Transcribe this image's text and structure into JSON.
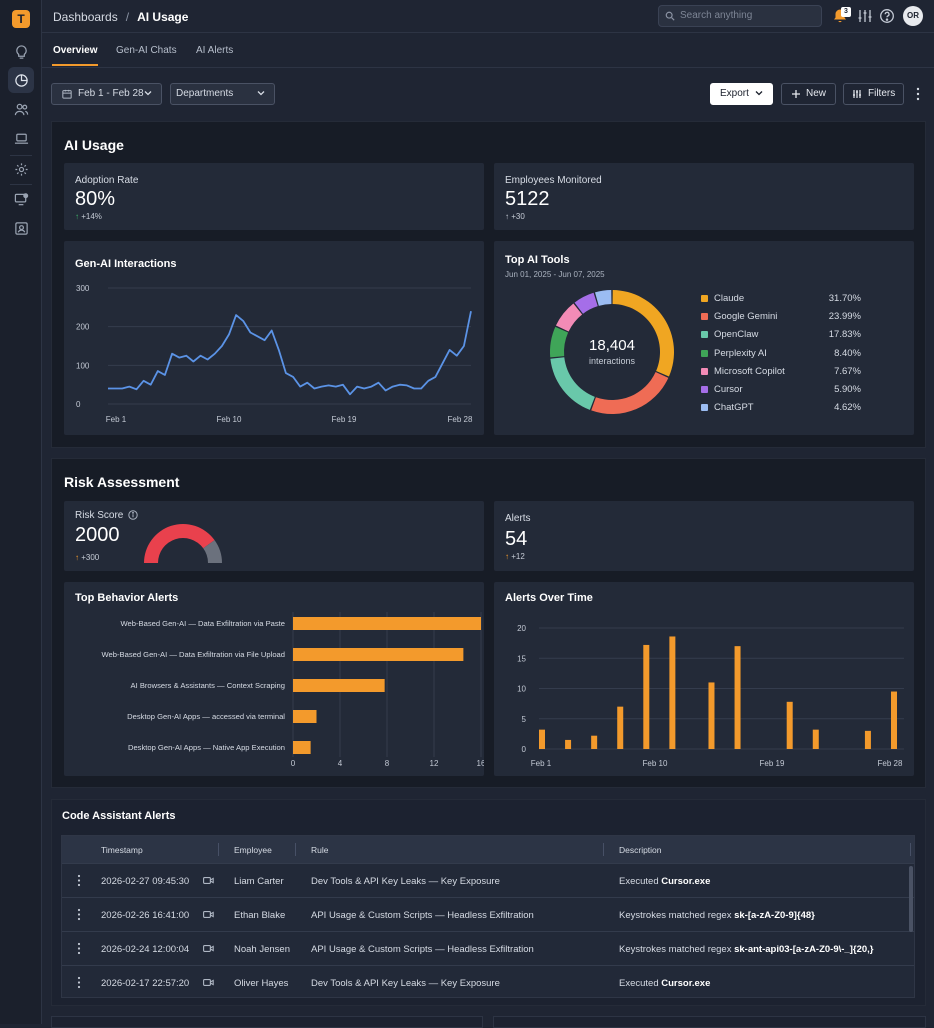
{
  "app": {
    "logo": "T"
  },
  "sidebar": {
    "icons": [
      "lightbulb-icon",
      "pie-chart-icon",
      "users-icon",
      "laptop-icon",
      "gear-icon",
      "monitor-alert-icon",
      "contact-card-icon"
    ]
  },
  "breadcrumb": {
    "parent": "Dashboards",
    "separator": "/",
    "current": "AI Usage"
  },
  "search": {
    "placeholder": "Search anything"
  },
  "header": {
    "notifications": "3",
    "avatar": "OR"
  },
  "tabs": [
    {
      "label": "Overview",
      "active": true
    },
    {
      "label": "Gen-AI Chats"
    },
    {
      "label": "AI Alerts"
    }
  ],
  "filters": {
    "date": "Feb 1 - Feb 28",
    "department": "Departments",
    "export": "Export",
    "new": "New",
    "filters": "Filters"
  },
  "ai_usage": {
    "title": "AI Usage",
    "adoption": {
      "label": "Adoption Rate",
      "value": "80%",
      "delta": "+14%"
    },
    "employees": {
      "label": "Employees Monitored",
      "value": "5122",
      "delta": "+30"
    }
  },
  "interactions": {
    "title": "Gen-AI Interactions"
  },
  "tools": {
    "title": "Top AI Tools",
    "subtitle": "Jun 01, 2025 - Jun 07, 2025",
    "total": "18,404",
    "total_label": "interactions"
  },
  "risk": {
    "title": "Risk Assessment",
    "score": {
      "label": "Risk Score",
      "value": "2000",
      "delta": "+300"
    },
    "alerts": {
      "label": "Alerts",
      "value": "54",
      "delta": "+12"
    },
    "behavior_title": "Top Behavior Alerts",
    "over_time_title": "Alerts Over Time"
  },
  "code_alerts": {
    "title": "Code Assistant Alerts",
    "columns": [
      "Timestamp",
      "Employee",
      "Rule",
      "Description"
    ],
    "rows": [
      {
        "timestamp": "2026-02-27 09:45:30",
        "employee": "Liam Carter",
        "rule": "Dev Tools & API Key Leaks — Key Exposure",
        "desc_prefix": "Executed ",
        "desc_bold": "Cursor.exe"
      },
      {
        "timestamp": "2026-02-26 16:41:00",
        "employee": "Ethan Blake",
        "rule": "API Usage & Custom Scripts — Headless Exfiltration",
        "desc_prefix": "Keystrokes matched regex ",
        "desc_bold": "sk-[a-zA-Z0-9]{48}"
      },
      {
        "timestamp": "2026-02-24 12:00:04",
        "employee": "Noah Jensen",
        "rule": "API Usage & Custom Scripts — Headless Exfiltration",
        "desc_prefix": "Keystrokes matched regex ",
        "desc_bold": "sk-ant-api03-[a-zA-Z0-9\\-_]{20,}"
      },
      {
        "timestamp": "2026-02-17 22:57:20",
        "employee": "Oliver Hayes",
        "rule": "Dev Tools & API Key Leaks — Key Exposure",
        "desc_prefix": "Executed ",
        "desc_bold": "Cursor.exe"
      }
    ]
  },
  "chart_data": [
    {
      "type": "line",
      "title": "Gen-AI Interactions",
      "x_ticks": [
        "Feb 1",
        "Feb 10",
        "Feb 19",
        "Feb 28"
      ],
      "ylim": [
        0,
        300
      ],
      "y_ticks": [
        0,
        100,
        200,
        300
      ],
      "color": "#5b93e6",
      "grid": true,
      "values": [
        40,
        40,
        40,
        45,
        38,
        60,
        50,
        85,
        75,
        130,
        120,
        125,
        110,
        125,
        115,
        130,
        150,
        180,
        230,
        215,
        185,
        175,
        165,
        190,
        140,
        80,
        70,
        45,
        55,
        40,
        45,
        48,
        45,
        50,
        25,
        45,
        40,
        45,
        55,
        35,
        45,
        50,
        48,
        40,
        40,
        60,
        70,
        105,
        140,
        125,
        150,
        240
      ]
    },
    {
      "type": "pie",
      "title": "Top AI Tools",
      "donut": true,
      "slices": [
        {
          "name": "Claude",
          "value": 31.7,
          "label": "31.70%",
          "color": "#f0a622"
        },
        {
          "name": "Google Gemini",
          "value": 23.99,
          "label": "23.99%",
          "color": "#ef6c55"
        },
        {
          "name": "OpenClaw",
          "value": 17.83,
          "label": "17.83%",
          "color": "#69c8aa"
        },
        {
          "name": "Perplexity AI",
          "value": 8.4,
          "label": "8.40%",
          "color": "#3fa558"
        },
        {
          "name": "Microsoft Copilot",
          "value": 7.67,
          "label": "7.67%",
          "color": "#f28bb6"
        },
        {
          "name": "Cursor",
          "value": 5.9,
          "label": "5.90%",
          "color": "#a56ee8"
        },
        {
          "name": "ChatGPT",
          "value": 4.62,
          "label": "4.62%",
          "color": "#9bbcf2"
        }
      ]
    },
    {
      "type": "gauge",
      "title": "Risk Score",
      "fraction": 0.8,
      "colors": {
        "fill": "#e9414d",
        "rest": "#6b717d"
      }
    },
    {
      "type": "bar",
      "orientation": "horizontal",
      "title": "Top Behavior Alerts",
      "categories": [
        "Web-Based Gen-AI — Data Exfiltration via Paste",
        "Web-Based Gen-AI — Data Exfiltration via File Upload",
        "AI Browsers & Assistants — Context Scraping",
        "Desktop Gen-AI Apps — accessed via terminal",
        "Desktop Gen-AI Apps — Native App Execution"
      ],
      "values": [
        16,
        14.5,
        7.8,
        2,
        1.5
      ],
      "xlim": [
        0,
        16
      ],
      "x_ticks": [
        0,
        4,
        8,
        12,
        16
      ],
      "color": "#f39a2c"
    },
    {
      "type": "bar",
      "title": "Alerts Over Time",
      "x_ticks": [
        "Feb 1",
        "Feb 10",
        "Feb 19",
        "Feb 28"
      ],
      "ylim": [
        0,
        20
      ],
      "y_ticks": [
        0,
        5,
        10,
        15,
        20
      ],
      "color": "#f39a2c",
      "bars": [
        {
          "day": 1,
          "value": 3.2
        },
        {
          "day": 3,
          "value": 1.5
        },
        {
          "day": 5,
          "value": 2.2
        },
        {
          "day": 7,
          "value": 7
        },
        {
          "day": 9,
          "value": 17.2
        },
        {
          "day": 11,
          "value": 18.6
        },
        {
          "day": 14,
          "value": 11
        },
        {
          "day": 16,
          "value": 17
        },
        {
          "day": 20,
          "value": 7.8
        },
        {
          "day": 22,
          "value": 3.2
        },
        {
          "day": 26,
          "value": 3
        },
        {
          "day": 28,
          "value": 9.5
        }
      ]
    }
  ]
}
